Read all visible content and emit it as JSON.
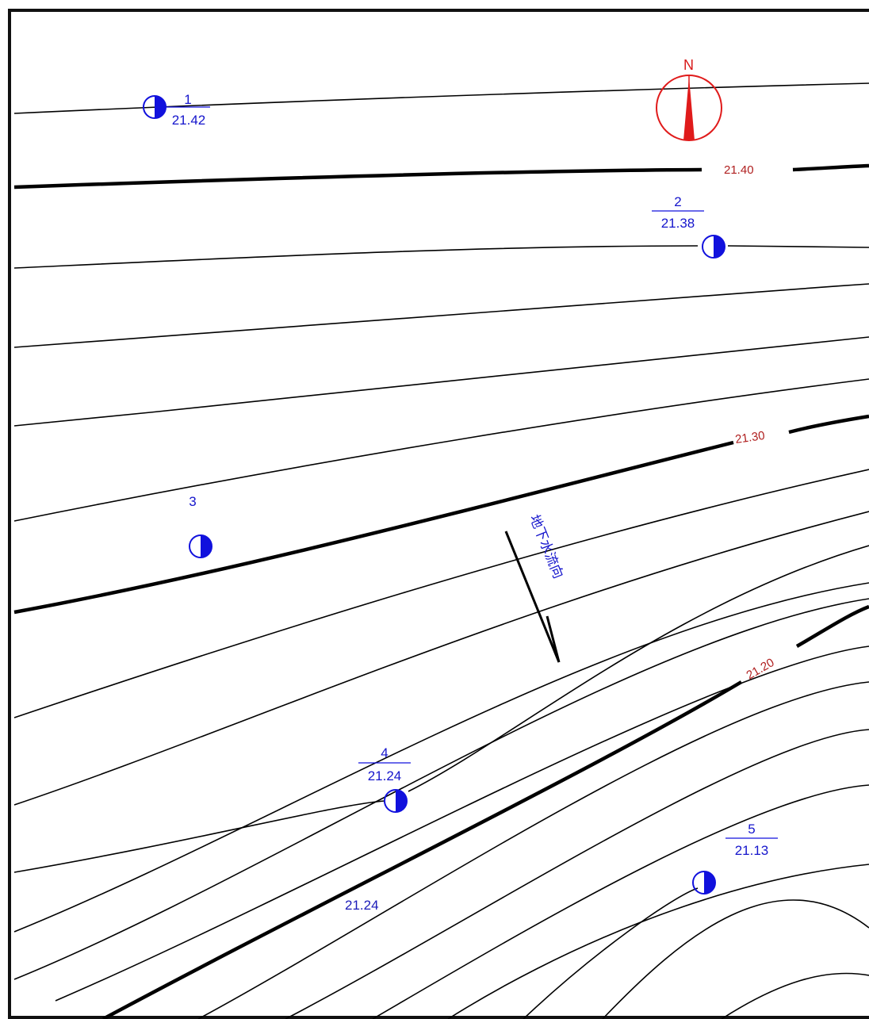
{
  "compass": {
    "letter": "N",
    "color": "#e01b1b"
  },
  "contour_labels": [
    {
      "id": "c1",
      "text": "21.40"
    },
    {
      "id": "c2",
      "text": "21.30"
    },
    {
      "id": "c3",
      "text": "21.20"
    }
  ],
  "wells": [
    {
      "id": "w1",
      "number": "1",
      "level": "21.42"
    },
    {
      "id": "w2",
      "number": "2",
      "level": "21.38"
    },
    {
      "id": "w3",
      "number": "3",
      "level": ""
    },
    {
      "id": "w4",
      "number": "4",
      "level": "21.24"
    },
    {
      "id": "w5",
      "number": "5",
      "level": "21.13"
    }
  ],
  "flow_direction_label": "地下水流向",
  "extra_labels": [
    {
      "id": "x1",
      "text": "21.24"
    }
  ],
  "colors": {
    "wells": "#1111dd",
    "contour_labels": "#b02020",
    "contours": "#000000",
    "frame": "#111111"
  }
}
